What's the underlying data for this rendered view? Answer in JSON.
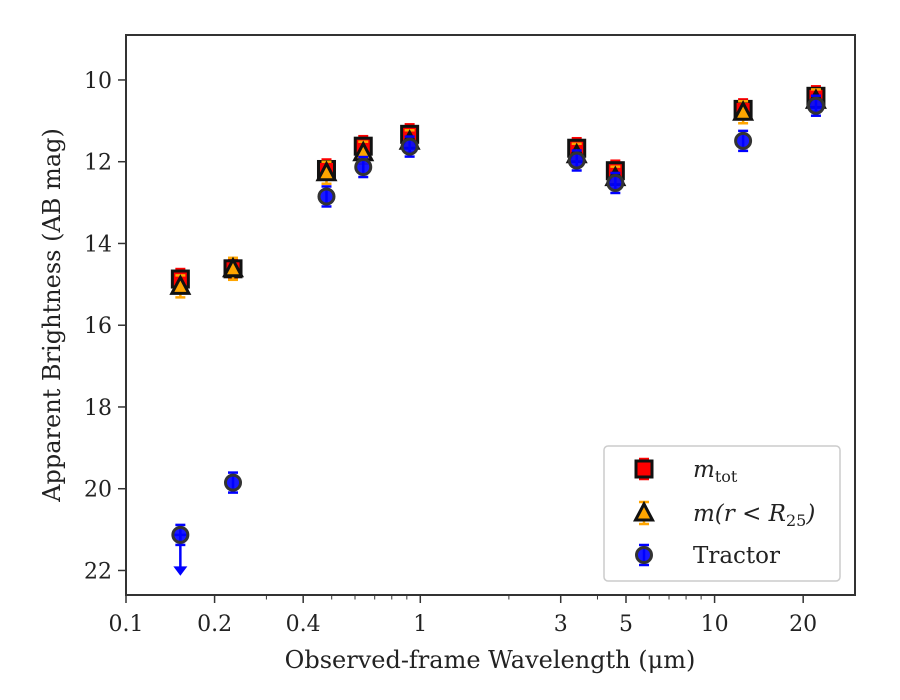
{
  "chart_data": {
    "type": "scatter",
    "xlabel": "Observed-frame Wavelength (μm)",
    "ylabel": "Apparent Brightness (AB mag)",
    "x_scale": "log",
    "y_inverted": true,
    "xlim": [
      0.1,
      30
    ],
    "ylim": [
      22.6,
      8.9
    ],
    "x_ticks": [
      0.1,
      0.2,
      0.4,
      1,
      3,
      5,
      10,
      20
    ],
    "x_tick_labels": [
      "0.1",
      "0.2",
      "0.4",
      "1",
      "3",
      "5",
      "10",
      "20"
    ],
    "y_ticks": [
      10,
      12,
      14,
      16,
      18,
      20,
      22
    ],
    "y_tick_labels": [
      "10",
      "12",
      "14",
      "16",
      "18",
      "20",
      "22"
    ],
    "grid": false,
    "legend_position": "lower-right",
    "series": [
      {
        "name": "m_tot",
        "legend_label": "m",
        "legend_subscript": "tot",
        "marker": "square",
        "color": "#ff0000",
        "edge_color": "#111111",
        "points": [
          {
            "x": 0.153,
            "y": 14.87
          },
          {
            "x": 0.231,
            "y": 14.62
          },
          {
            "x": 0.48,
            "y": 12.19
          },
          {
            "x": 0.64,
            "y": 11.62
          },
          {
            "x": 0.92,
            "y": 11.33
          },
          {
            "x": 3.4,
            "y": 11.67
          },
          {
            "x": 4.6,
            "y": 12.22
          },
          {
            "x": 12.5,
            "y": 10.72
          },
          {
            "x": 22.1,
            "y": 10.4
          }
        ]
      },
      {
        "name": "m(r<R25)",
        "legend_label": "m(r < R",
        "legend_subscript": "25",
        "legend_suffix": ")",
        "marker": "triangle",
        "color": "#ffa500",
        "edge_color": "#111111",
        "points": [
          {
            "x": 0.153,
            "y": 15.05
          },
          {
            "x": 0.231,
            "y": 14.62
          },
          {
            "x": 0.48,
            "y": 12.27
          },
          {
            "x": 0.64,
            "y": 11.78
          },
          {
            "x": 0.92,
            "y": 11.5
          },
          {
            "x": 3.4,
            "y": 11.83
          },
          {
            "x": 4.6,
            "y": 12.39
          },
          {
            "x": 12.5,
            "y": 10.79
          },
          {
            "x": 22.1,
            "y": 10.5
          }
        ]
      },
      {
        "name": "Tractor",
        "legend_label": "Tractor",
        "marker": "circle",
        "color": "#0000ff",
        "edge_color": "#333333",
        "points": [
          {
            "x": 0.153,
            "y": 21.13,
            "upper_limit": true
          },
          {
            "x": 0.231,
            "y": 19.85
          },
          {
            "x": 0.48,
            "y": 12.85
          },
          {
            "x": 0.64,
            "y": 12.13
          },
          {
            "x": 0.92,
            "y": 11.63
          },
          {
            "x": 3.4,
            "y": 11.97
          },
          {
            "x": 4.6,
            "y": 12.52
          },
          {
            "x": 12.5,
            "y": 11.49
          },
          {
            "x": 22.1,
            "y": 10.63
          }
        ]
      }
    ]
  }
}
